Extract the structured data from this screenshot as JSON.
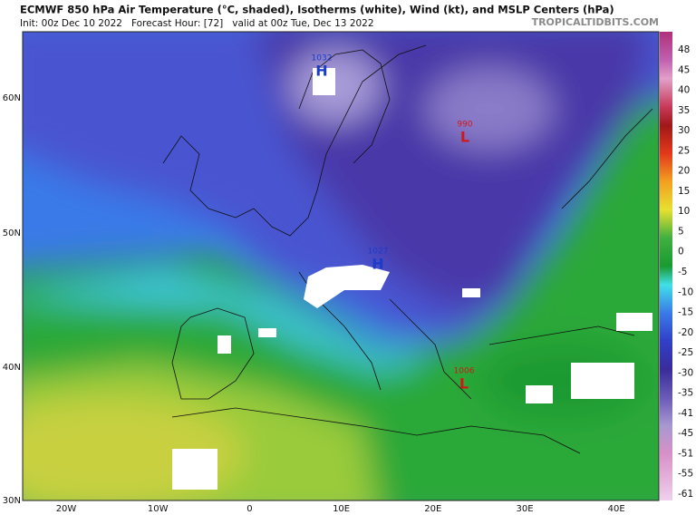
{
  "header": {
    "title": "ECMWF 850 hPa Air Temperature (°C, shaded), Isotherms (white), Wind (kt), and MSLP Centers (hPa)",
    "subtitle": "Init: 00z Dec 10 2022   Forecast Hour: [72]   valid at 00z Tue, Dec 13 2022",
    "site": "TROPICALTIDBITS.COM"
  },
  "map": {
    "lat_labels": [
      "60N",
      "50N",
      "40N",
      "30N"
    ],
    "lon_labels": [
      "20W",
      "10W",
      "0",
      "10E",
      "20E",
      "30E",
      "40E"
    ],
    "pressure_centers": [
      {
        "symbol": "H",
        "value": 1032
      },
      {
        "symbol": "L",
        "value": 990
      },
      {
        "symbol": "H",
        "value": 1027
      },
      {
        "symbol": "L",
        "value": 1006
      }
    ]
  },
  "colorbar": {
    "labels": [
      48,
      45,
      40,
      35,
      30,
      25,
      20,
      15,
      10,
      5,
      0,
      -5,
      -10,
      -15,
      -20,
      -25,
      -30,
      -35,
      -41,
      -45,
      -51,
      -55,
      -61
    ]
  }
}
